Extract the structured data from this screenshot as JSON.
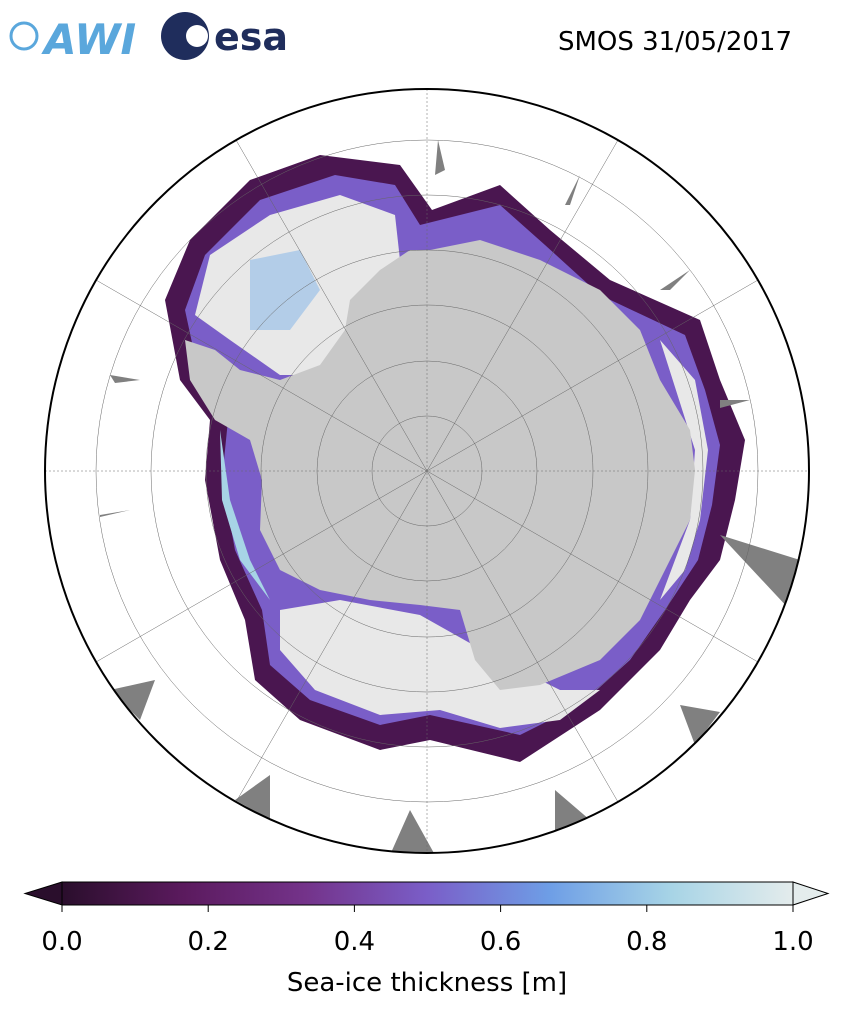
{
  "header": {
    "logos": [
      "AWI",
      "esa"
    ],
    "title": "SMOS 31/05/2017"
  },
  "colorbar": {
    "label": "Sea-ice thickness [m]",
    "lim": [
      0,
      1
    ],
    "ticks": [
      {
        "value": 0,
        "label": "0.0"
      },
      {
        "value": 0.2,
        "label": "0.2"
      },
      {
        "value": 0.4,
        "label": "0.4"
      },
      {
        "value": 0.6,
        "label": "0.6"
      },
      {
        "value": 0.8,
        "label": "0.8"
      },
      {
        "value": 1,
        "label": "1.0"
      }
    ],
    "colors": [
      "#2a0e2c",
      "#5b1a5e",
      "#74338a",
      "#7a5ec8",
      "#6e9ee6",
      "#a7d4e6",
      "#e4ecec"
    ]
  }
}
